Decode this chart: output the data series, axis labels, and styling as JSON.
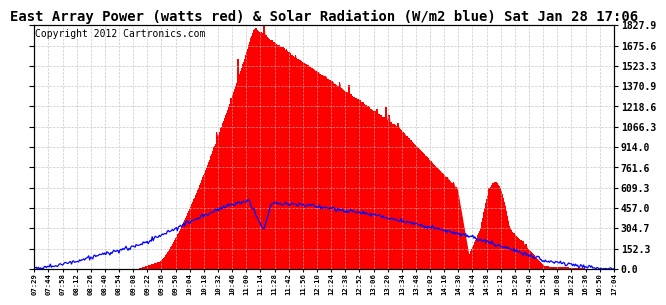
{
  "title": "East Array Power (watts red) & Solar Radiation (W/m2 blue) Sat Jan 28 17:06",
  "copyright": "Copyright 2012 Cartronics.com",
  "y_ticks": [
    0.0,
    152.3,
    304.7,
    457.0,
    609.3,
    761.6,
    914.0,
    1066.3,
    1218.6,
    1370.9,
    1523.3,
    1675.6,
    1827.9
  ],
  "x_labels": [
    "07:29",
    "07:44",
    "07:58",
    "08:12",
    "08:26",
    "08:40",
    "08:54",
    "09:08",
    "09:22",
    "09:36",
    "09:50",
    "10:04",
    "10:18",
    "10:32",
    "10:46",
    "11:00",
    "11:14",
    "11:28",
    "11:42",
    "11:56",
    "12:10",
    "12:24",
    "12:38",
    "12:52",
    "13:06",
    "13:20",
    "13:34",
    "13:48",
    "14:02",
    "14:16",
    "14:30",
    "14:44",
    "14:58",
    "15:12",
    "15:26",
    "15:40",
    "15:54",
    "16:08",
    "16:22",
    "16:36",
    "16:50",
    "17:04"
  ],
  "ymax": 1827.9,
  "background_color": "#ffffff",
  "fill_color": "#ff0000",
  "line_color": "#0000ff",
  "grid_color": "#bbbbbb",
  "title_fontsize": 10,
  "copyright_fontsize": 7
}
